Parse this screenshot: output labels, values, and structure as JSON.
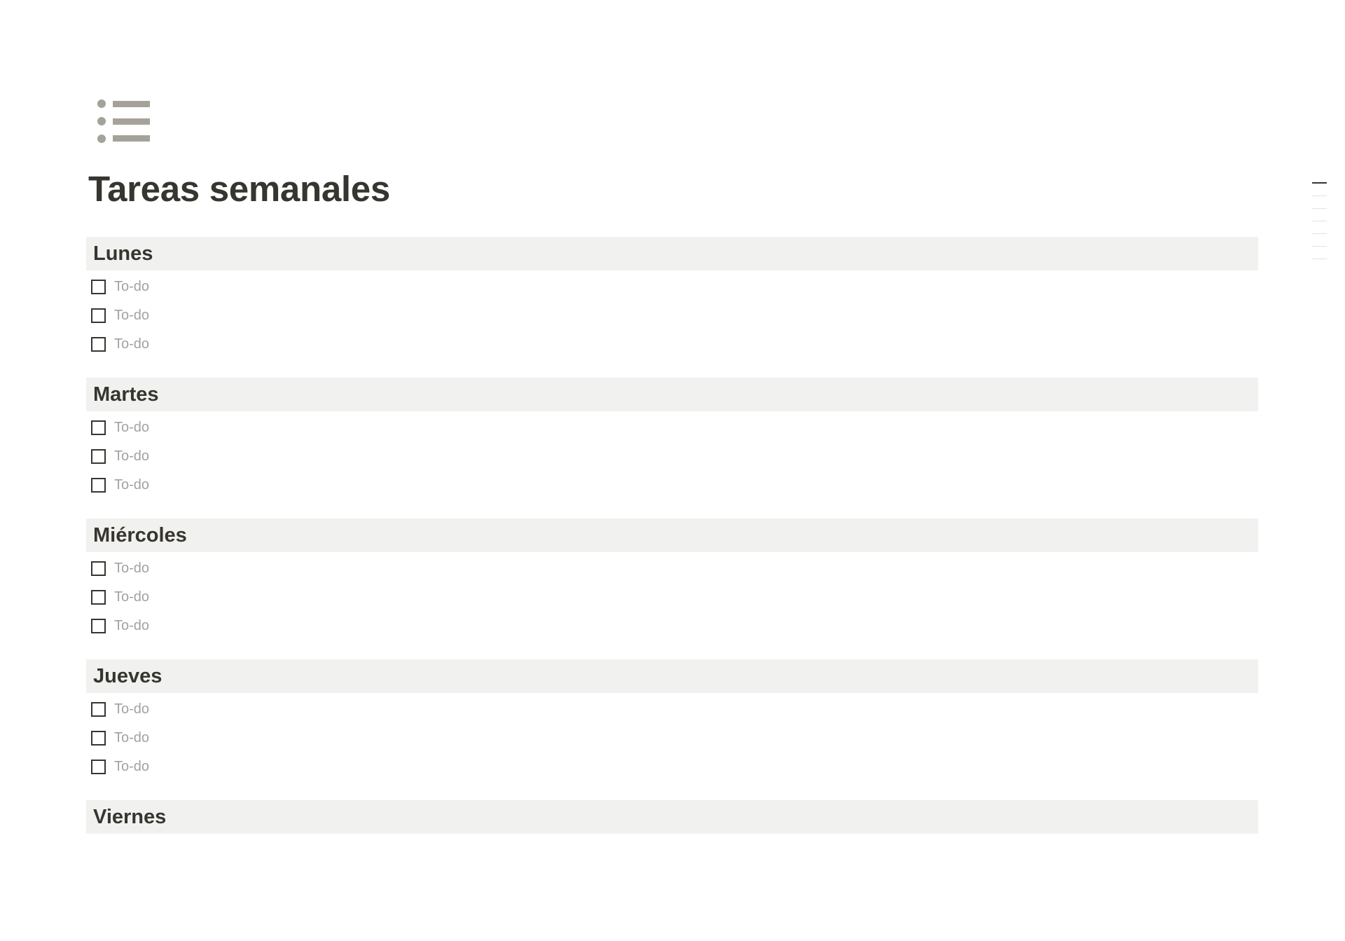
{
  "page": {
    "icon": "bulleted-list-icon",
    "title": "Tareas semanales"
  },
  "sections": [
    {
      "heading": "Lunes",
      "todos": [
        "To-do",
        "To-do",
        "To-do"
      ]
    },
    {
      "heading": "Martes",
      "todos": [
        "To-do",
        "To-do",
        "To-do"
      ]
    },
    {
      "heading": "Miércoles",
      "todos": [
        "To-do",
        "To-do",
        "To-do"
      ]
    },
    {
      "heading": "Jueves",
      "todos": [
        "To-do",
        "To-do",
        "To-do"
      ]
    },
    {
      "heading": "Viernes",
      "todos": []
    }
  ],
  "toc": {
    "count": 7,
    "active_index": 0
  },
  "colors": {
    "text": "#37352f",
    "heading_bg": "#f1f1ef",
    "placeholder": "#a3a29e",
    "icon": "#a5a29a"
  }
}
